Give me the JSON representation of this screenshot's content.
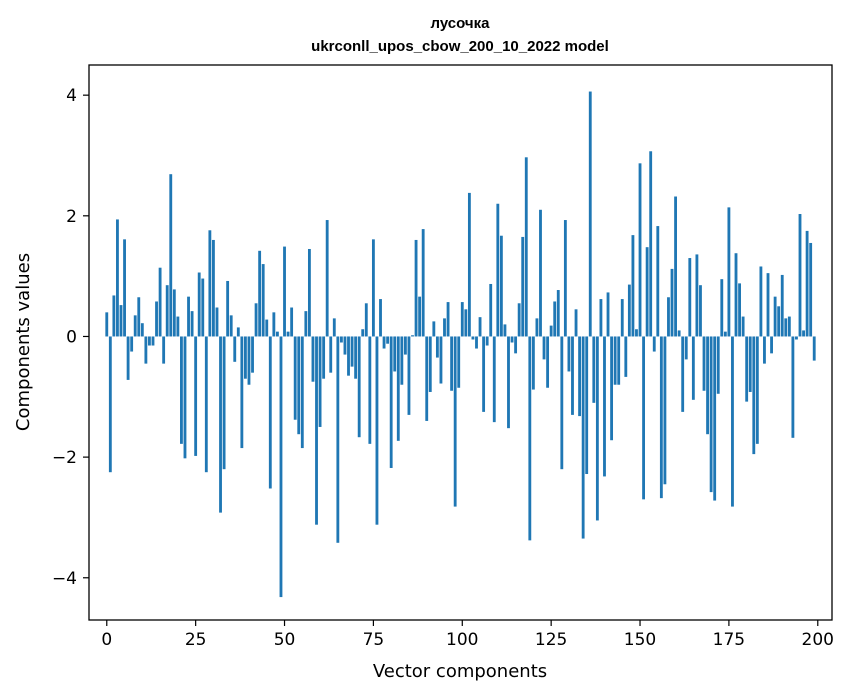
{
  "chart_data": {
    "type": "bar",
    "title": "лусочка",
    "subtitle": "ukrconll_upos_cbow_200_10_2022 model",
    "xlabel": "Vector components",
    "ylabel": "Components values",
    "xlim": [
      -5,
      204
    ],
    "ylim": [
      -4.7,
      4.5
    ],
    "x_ticks": [
      0,
      25,
      50,
      75,
      100,
      125,
      150,
      175,
      200
    ],
    "y_ticks": [
      -4,
      -2,
      0,
      2,
      4
    ],
    "y_tick_labels": [
      "−4",
      "−2",
      "0",
      "2",
      "4"
    ],
    "grid": false,
    "bar_color": "#1f77b4",
    "x": [
      0,
      1,
      2,
      3,
      4,
      5,
      6,
      7,
      8,
      9,
      10,
      11,
      12,
      13,
      14,
      15,
      16,
      17,
      18,
      19,
      20,
      21,
      22,
      23,
      24,
      25,
      26,
      27,
      28,
      29,
      30,
      31,
      32,
      33,
      34,
      35,
      36,
      37,
      38,
      39,
      40,
      41,
      42,
      43,
      44,
      45,
      46,
      47,
      48,
      49,
      50,
      51,
      52,
      53,
      54,
      55,
      56,
      57,
      58,
      59,
      60,
      61,
      62,
      63,
      64,
      65,
      66,
      67,
      68,
      69,
      70,
      71,
      72,
      73,
      74,
      75,
      76,
      77,
      78,
      79,
      80,
      81,
      82,
      83,
      84,
      85,
      86,
      87,
      88,
      89,
      90,
      91,
      92,
      93,
      94,
      95,
      96,
      97,
      98,
      99,
      100,
      101,
      102,
      103,
      104,
      105,
      106,
      107,
      108,
      109,
      110,
      111,
      112,
      113,
      114,
      115,
      116,
      117,
      118,
      119,
      120,
      121,
      122,
      123,
      124,
      125,
      126,
      127,
      128,
      129,
      130,
      131,
      132,
      133,
      134,
      135,
      136,
      137,
      138,
      139,
      140,
      141,
      142,
      143,
      144,
      145,
      146,
      147,
      148,
      149,
      150,
      151,
      152,
      153,
      154,
      155,
      156,
      157,
      158,
      159,
      160,
      161,
      162,
      163,
      164,
      165,
      166,
      167,
      168,
      169,
      170,
      171,
      172,
      173,
      174,
      175,
      176,
      177,
      178,
      179,
      180,
      181,
      182,
      183,
      184,
      185,
      186,
      187,
      188,
      189,
      190,
      191,
      192,
      193,
      194,
      195,
      196,
      197,
      198,
      199
    ],
    "values": [
      0.4,
      -2.25,
      0.68,
      1.94,
      0.52,
      1.61,
      -0.72,
      -0.25,
      0.35,
      0.65,
      0.22,
      -0.45,
      -0.15,
      -0.15,
      0.58,
      1.14,
      -0.45,
      0.85,
      2.69,
      0.78,
      0.33,
      -1.78,
      -2.02,
      0.66,
      0.42,
      -1.98,
      1.06,
      0.96,
      -2.25,
      1.76,
      1.6,
      0.48,
      -2.92,
      -2.2,
      0.92,
      0.35,
      -0.42,
      0.15,
      -1.85,
      -0.7,
      -0.8,
      -0.6,
      0.55,
      1.42,
      1.2,
      0.28,
      -2.52,
      0.4,
      0.08,
      -4.32,
      1.49,
      0.08,
      0.48,
      -1.38,
      -1.62,
      -1.85,
      0.42,
      1.45,
      -0.75,
      -3.12,
      -1.5,
      -0.7,
      1.93,
      -0.6,
      0.3,
      -3.42,
      -0.1,
      -0.3,
      -0.65,
      -0.5,
      -0.7,
      -1.67,
      0.12,
      0.55,
      -1.78,
      1.61,
      -3.12,
      0.62,
      -0.2,
      -0.12,
      -2.18,
      -0.58,
      -1.73,
      -0.8,
      -0.3,
      -1.3,
      0.02,
      1.6,
      0.66,
      1.78,
      -1.4,
      -0.92,
      0.25,
      -0.35,
      -0.78,
      0.3,
      0.57,
      -0.9,
      -2.82,
      -0.85,
      0.57,
      0.45,
      2.38,
      -0.05,
      -0.2,
      0.32,
      -1.25,
      -0.15,
      0.87,
      -1.42,
      2.2,
      1.67,
      0.2,
      -1.52,
      -0.1,
      -0.28,
      0.55,
      1.65,
      2.97,
      -3.38,
      -0.88,
      0.3,
      2.1,
      -0.38,
      -0.85,
      0.18,
      0.58,
      0.77,
      -2.2,
      1.93,
      -0.58,
      -1.3,
      0.45,
      -1.32,
      -3.35,
      -2.28,
      4.06,
      -1.1,
      -3.05,
      0.62,
      -2.32,
      0.73,
      -1.72,
      -0.8,
      -0.8,
      0.62,
      -0.67,
      0.86,
      1.68,
      0.12,
      2.87,
      -2.7,
      1.48,
      3.07,
      -0.25,
      1.83,
      -2.68,
      -2.45,
      0.65,
      1.12,
      2.32,
      0.1,
      -1.25,
      -0.38,
      1.3,
      -1.05,
      1.36,
      0.85,
      -0.9,
      -1.62,
      -2.58,
      -2.72,
      -0.95,
      0.95,
      0.08,
      2.14,
      -2.82,
      1.38,
      0.88,
      0.33,
      -1.08,
      -0.92,
      -1.95,
      -1.78,
      1.16,
      -0.45,
      1.05,
      -0.28,
      0.66,
      0.5,
      1.02,
      0.3,
      0.33,
      -1.68,
      -0.05,
      2.03,
      0.1,
      1.75,
      1.55,
      -0.4
    ]
  }
}
